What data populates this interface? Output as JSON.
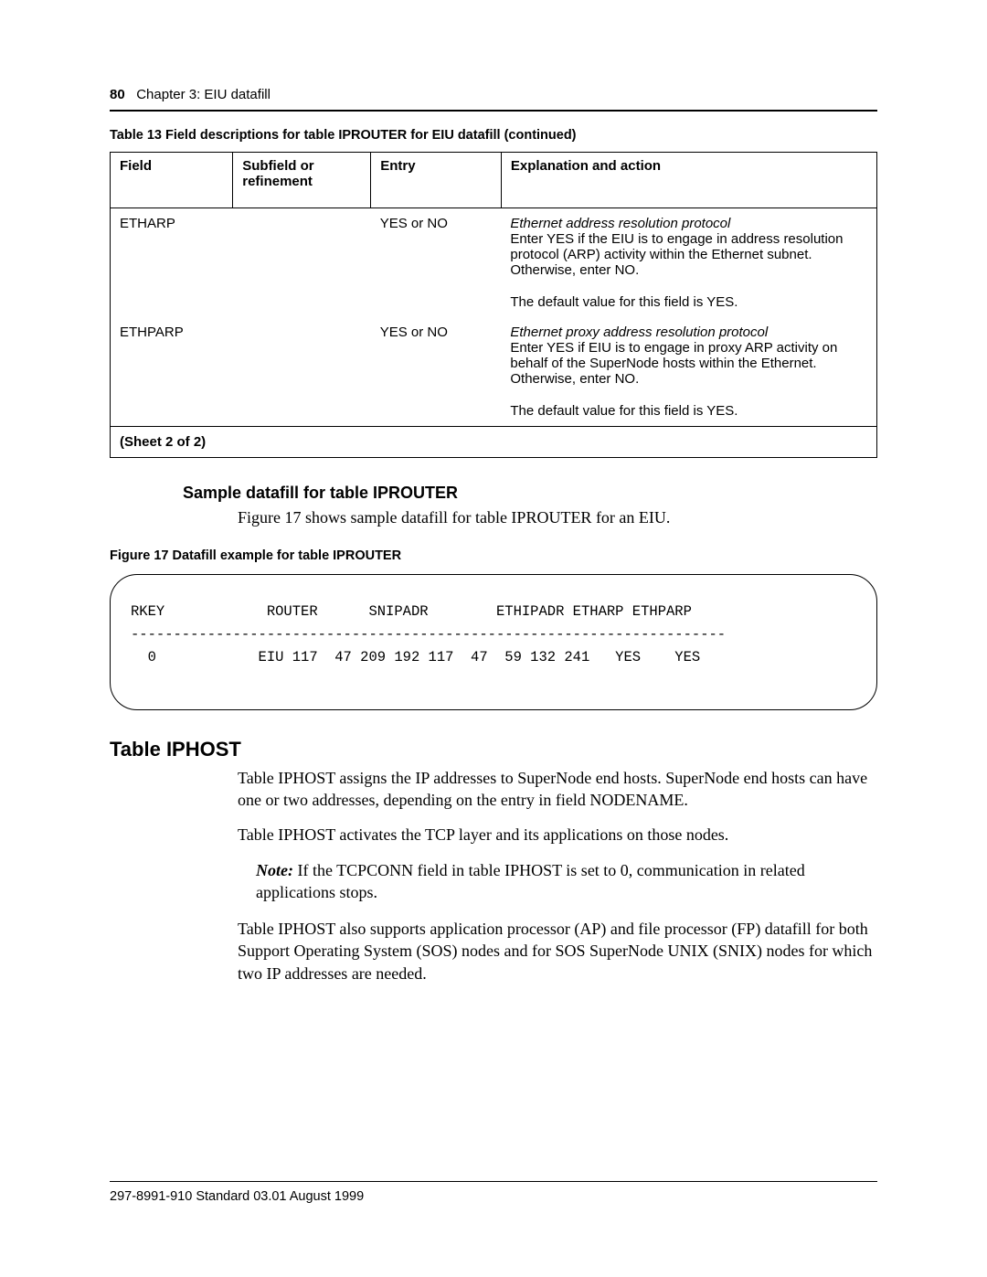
{
  "header": {
    "page_number": "80",
    "chapter_label": "Chapter 3: EIU datafill"
  },
  "table13": {
    "caption": "Table 13   Field descriptions for table IPROUTER for EIU datafill (continued)",
    "columns": {
      "field": "Field",
      "subfield": "Subfield or refinement",
      "entry": "Entry",
      "explanation": "Explanation and action"
    },
    "rows": [
      {
        "field": "ETHARP",
        "subfield": "",
        "entry": "YES or NO",
        "expl_italic": "Ethernet address resolution protocol",
        "expl_body": "Enter YES if the EIU is to engage in address resolution protocol (ARP) activity within the Ethernet subnet. Otherwise, enter NO.",
        "expl_default": "The default value for this field is YES."
      },
      {
        "field": "ETHPARP",
        "subfield": "",
        "entry": "YES or NO",
        "expl_italic": "Ethernet proxy address resolution protocol",
        "expl_body": "Enter YES if EIU is to  engage  in proxy ARP activity on behalf of the SuperNode hosts within the Ethernet. Otherwise, enter NO.",
        "expl_default": "The default value for this field is YES."
      }
    ],
    "sheet": "(Sheet 2 of 2)"
  },
  "sample_section": {
    "heading": "Sample datafill for table IPROUTER",
    "text": "Figure 17 shows sample datafill for table IPROUTER for an EIU."
  },
  "figure17": {
    "caption": "Figure 17   Datafill example for table IPROUTER",
    "mono": "RKEY            ROUTER      SNIPADR        ETHIPADR ETHARP ETHPARP\n----------------------------------------------------------------------\n  0            EIU 117  47 209 192 117  47  59 132 241   YES    YES"
  },
  "iphost": {
    "heading": "Table IPHOST",
    "p1": "Table IPHOST assigns the IP addresses to SuperNode end hosts. SuperNode end hosts can have one or two addresses, depending on the entry in field NODENAME.",
    "p2": "Table IPHOST activates the TCP layer and its applications on those nodes.",
    "note_label": "Note:",
    "note_text": " If the TCPCONN field in table IPHOST is set to 0, communication in related applications stops.",
    "p3": "Table IPHOST also supports application processor (AP) and file processor (FP) datafill for both Support Operating System (SOS) nodes and for SOS SuperNode UNIX (SNIX) nodes for which two IP addresses are needed."
  },
  "footer": {
    "text": "297-8991-910  Standard  03.01  August 1999"
  }
}
